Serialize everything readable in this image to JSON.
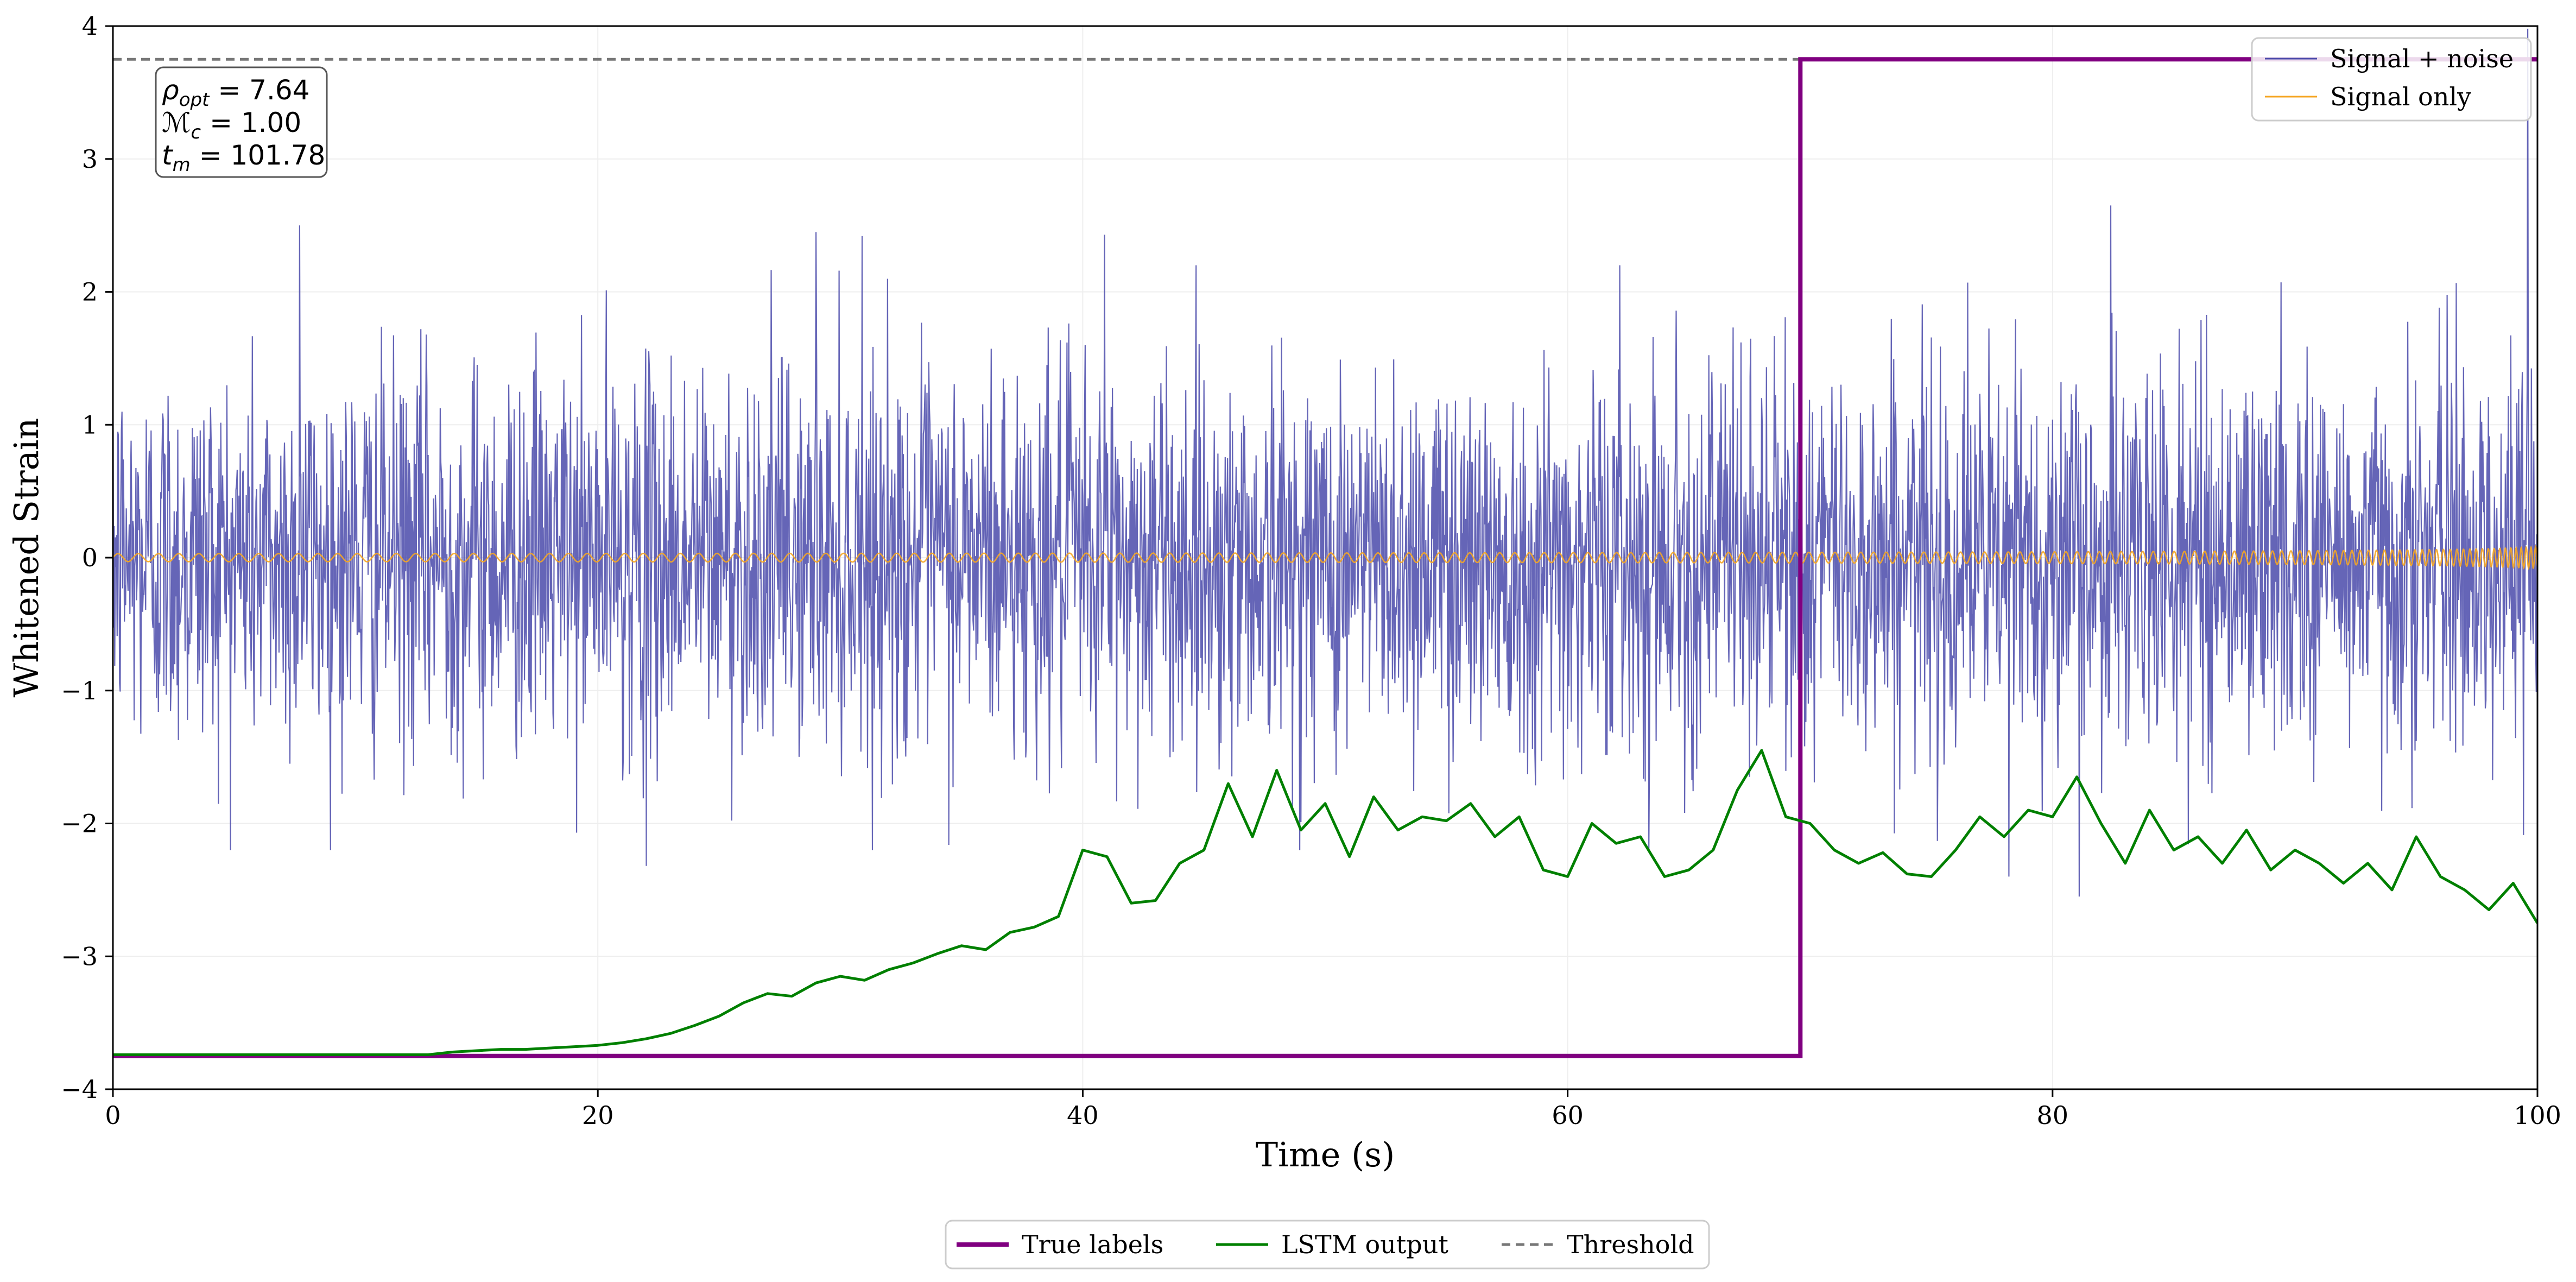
{
  "chart_data": {
    "type": "line",
    "title": "",
    "xlabel": "Time (s)",
    "ylabel": "Whitened Strain",
    "xlim": [
      0,
      100
    ],
    "ylim": [
      -4,
      4
    ],
    "xticks": [
      0,
      20,
      40,
      60,
      80,
      100
    ],
    "yticks": [
      -4,
      -3,
      -2,
      -1,
      0,
      1,
      2,
      3,
      4
    ],
    "xtick_labels": [
      "0",
      "20",
      "40",
      "60",
      "80",
      "100"
    ],
    "ytick_labels": [
      "−4",
      "−3",
      "−2",
      "−1",
      "0",
      "1",
      "2",
      "3",
      "4"
    ],
    "grid": true,
    "threshold": 3.75,
    "annotation": {
      "rho": {
        "symbol": "ρ",
        "sub": "opt",
        "value": " = 7.64"
      },
      "mc": {
        "symbol": "ℳ",
        "sub": "c",
        "value": " = 1.00"
      },
      "tm": {
        "symbol": "t",
        "sub": "m",
        "value": " = 101.78"
      }
    },
    "series": [
      {
        "name": "Signal + noise",
        "color": "#4a4aaa",
        "style": "noise",
        "std": 0.72,
        "points": 4000,
        "spikes": [
          [
            7.7,
            2.5
          ],
          [
            22.0,
            -2.32
          ],
          [
            29.0,
            2.45
          ],
          [
            30.9,
            2.42
          ],
          [
            40.9,
            2.43
          ],
          [
            81.1,
            -2.55
          ],
          [
            82.4,
            2.65
          ],
          [
            99.6,
            3.98
          ],
          [
            78.2,
            -2.4
          ],
          [
            67.5,
            -1.65
          ]
        ]
      },
      {
        "name": "Signal only",
        "color": "#f5a623",
        "style": "chirp",
        "merger_time": 101.78
      },
      {
        "name": "True labels",
        "color": "#800080",
        "style": "step",
        "x": [
          0,
          69.6,
          69.6,
          100
        ],
        "y": [
          -3.75,
          -3.75,
          3.75,
          3.75
        ]
      },
      {
        "name": "LSTM output",
        "color": "#008000",
        "style": "line",
        "x": [
          0,
          13,
          14,
          15,
          16,
          17,
          18,
          19,
          20,
          21,
          22,
          23,
          24,
          25,
          26,
          27,
          28,
          29,
          30,
          31,
          32,
          33,
          34,
          35,
          36,
          37,
          38,
          39,
          40,
          41,
          42,
          43,
          44,
          45,
          46,
          47,
          48,
          49,
          50,
          51,
          52,
          53,
          54,
          55,
          56,
          57,
          58,
          59,
          60,
          61,
          62,
          63,
          64,
          65,
          66,
          67,
          68,
          69,
          70,
          71,
          72,
          73,
          74,
          75,
          76,
          77,
          78,
          79,
          80,
          81,
          82,
          83,
          84,
          85,
          86,
          87,
          88,
          89,
          90,
          91,
          92,
          93,
          94,
          95,
          96,
          97,
          98,
          99,
          100
        ],
        "y": [
          -3.74,
          -3.74,
          -3.72,
          -3.71,
          -3.7,
          -3.7,
          -3.69,
          -3.68,
          -3.67,
          -3.65,
          -3.62,
          -3.58,
          -3.52,
          -3.45,
          -3.35,
          -3.28,
          -3.3,
          -3.2,
          -3.15,
          -3.18,
          -3.1,
          -3.05,
          -2.98,
          -2.92,
          -2.95,
          -2.82,
          -2.78,
          -2.7,
          -2.2,
          -2.25,
          -2.6,
          -2.58,
          -2.3,
          -2.2,
          -1.7,
          -2.1,
          -1.6,
          -2.05,
          -1.85,
          -2.25,
          -1.8,
          -2.05,
          -1.95,
          -1.98,
          -1.85,
          -2.1,
          -1.95,
          -2.35,
          -2.4,
          -2.0,
          -2.15,
          -2.1,
          -2.4,
          -2.35,
          -2.2,
          -1.75,
          -1.45,
          -1.95,
          -2.0,
          -2.2,
          -2.3,
          -2.22,
          -2.38,
          -2.4,
          -2.2,
          -1.95,
          -2.1,
          -1.9,
          -1.95,
          -1.65,
          -2.0,
          -2.3,
          -1.9,
          -2.2,
          -2.1,
          -2.3,
          -2.05,
          -2.35,
          -2.2,
          -2.3,
          -2.45,
          -2.3,
          -2.5,
          -2.1,
          -2.4,
          -2.5,
          -2.65,
          -2.45,
          -2.75
        ]
      },
      {
        "name": "Threshold",
        "color": "#777777",
        "style": "dashed"
      }
    ],
    "legend_top_right": [
      "Signal + noise",
      "Signal only"
    ],
    "legend_bottom": [
      "True labels",
      "LSTM output",
      "Threshold"
    ]
  }
}
